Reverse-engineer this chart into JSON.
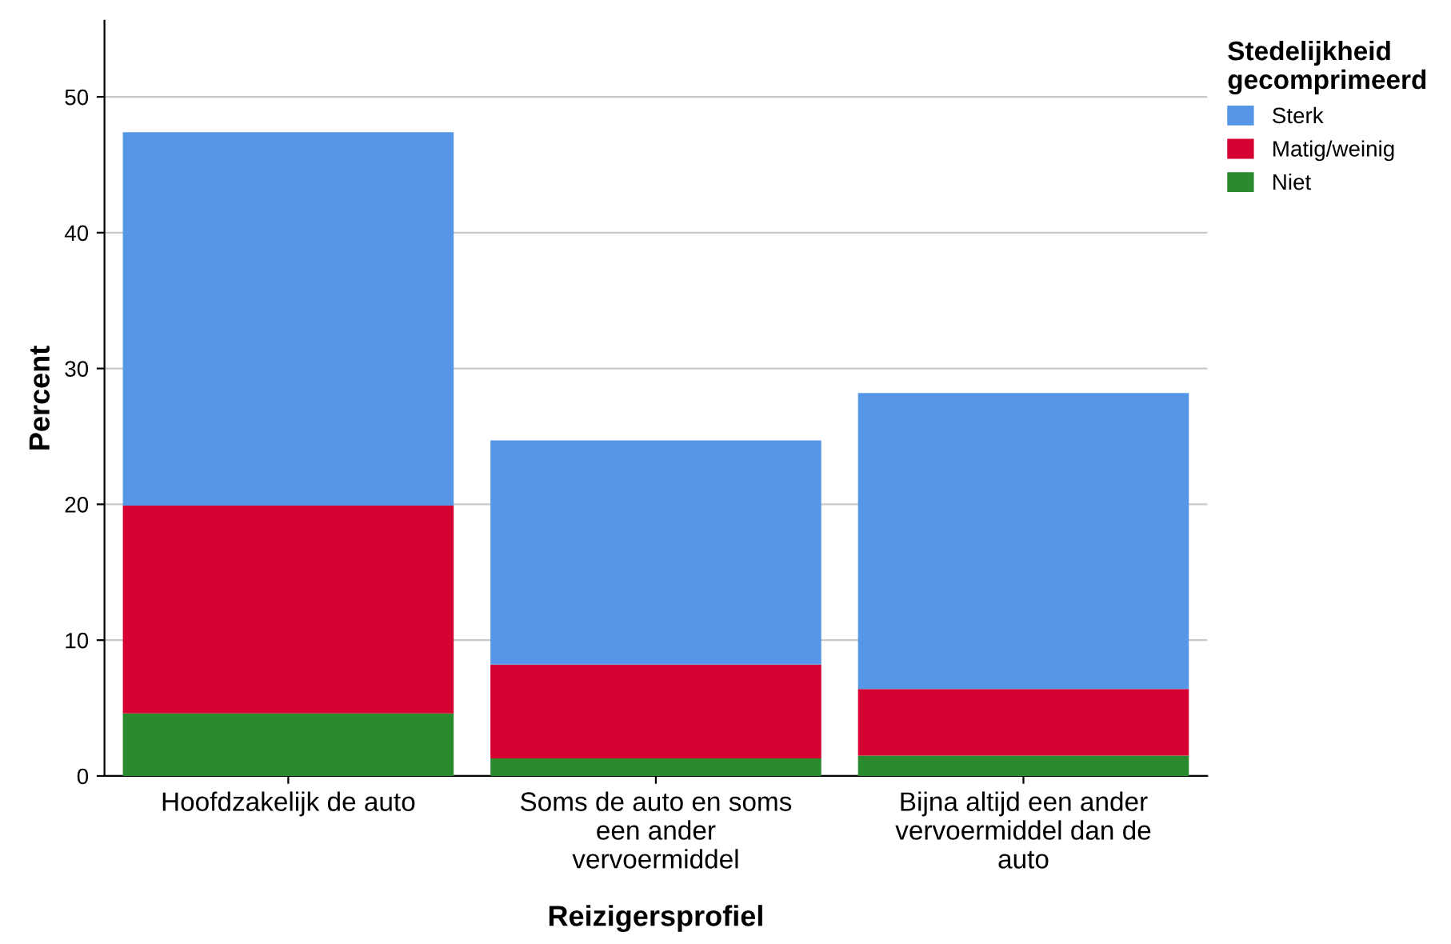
{
  "chart_data": {
    "type": "bar",
    "stacked": true,
    "xlabel": "Reizigersprofiel",
    "ylabel": "Percent",
    "legend_title": "Stedelijkheid\ngecomprimeerd",
    "categories": [
      "Hoofdzakelijk de auto",
      "Soms de auto en soms\neen ander\nvervoermiddel",
      "Bijna altijd een ander\nvervoermiddel dan de\nauto"
    ],
    "series": [
      {
        "name": "Niet",
        "color": "#2a8a2e",
        "values": [
          4.6,
          1.3,
          1.5
        ]
      },
      {
        "name": "Matig/weinig",
        "color": "#d60032",
        "values": [
          15.3,
          6.9,
          4.9
        ]
      },
      {
        "name": "Sterk",
        "color": "#5597e6",
        "values": [
          27.5,
          16.5,
          21.8
        ]
      }
    ],
    "ylim": [
      0,
      55.6
    ],
    "yticks": [
      0,
      10,
      20,
      30,
      40,
      50
    ],
    "grid": "y",
    "legend": "top right"
  }
}
